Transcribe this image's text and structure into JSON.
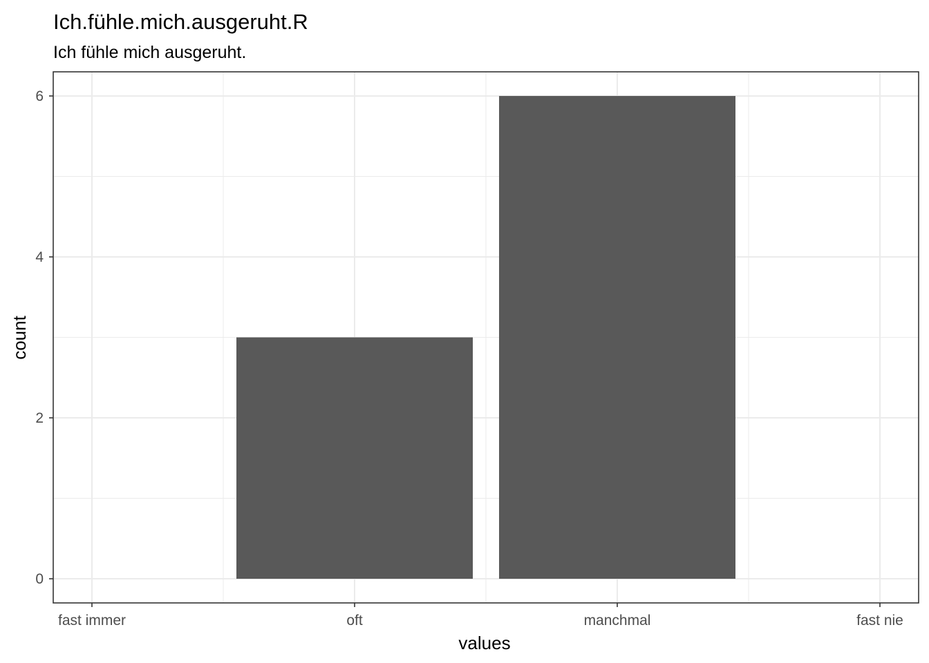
{
  "chart_data": {
    "type": "bar",
    "title": "Ich.fühle.mich.ausgeruht.R",
    "subtitle": "Ich fühle mich ausgeruht.",
    "xlabel": "values",
    "ylabel": "count",
    "categories": [
      "fast immer",
      "oft",
      "manchmal",
      "fast nie"
    ],
    "values": [
      0,
      3,
      6,
      0
    ],
    "ylim": [
      -0.3,
      6.3
    ],
    "yticks": [
      0,
      2,
      4,
      6
    ],
    "ytick_labels": [
      "0",
      "2",
      "4",
      "6"
    ],
    "grid": true,
    "bar_color": "#595959",
    "grid_color": "#ebebeb",
    "panel_border_color": "#333333"
  }
}
